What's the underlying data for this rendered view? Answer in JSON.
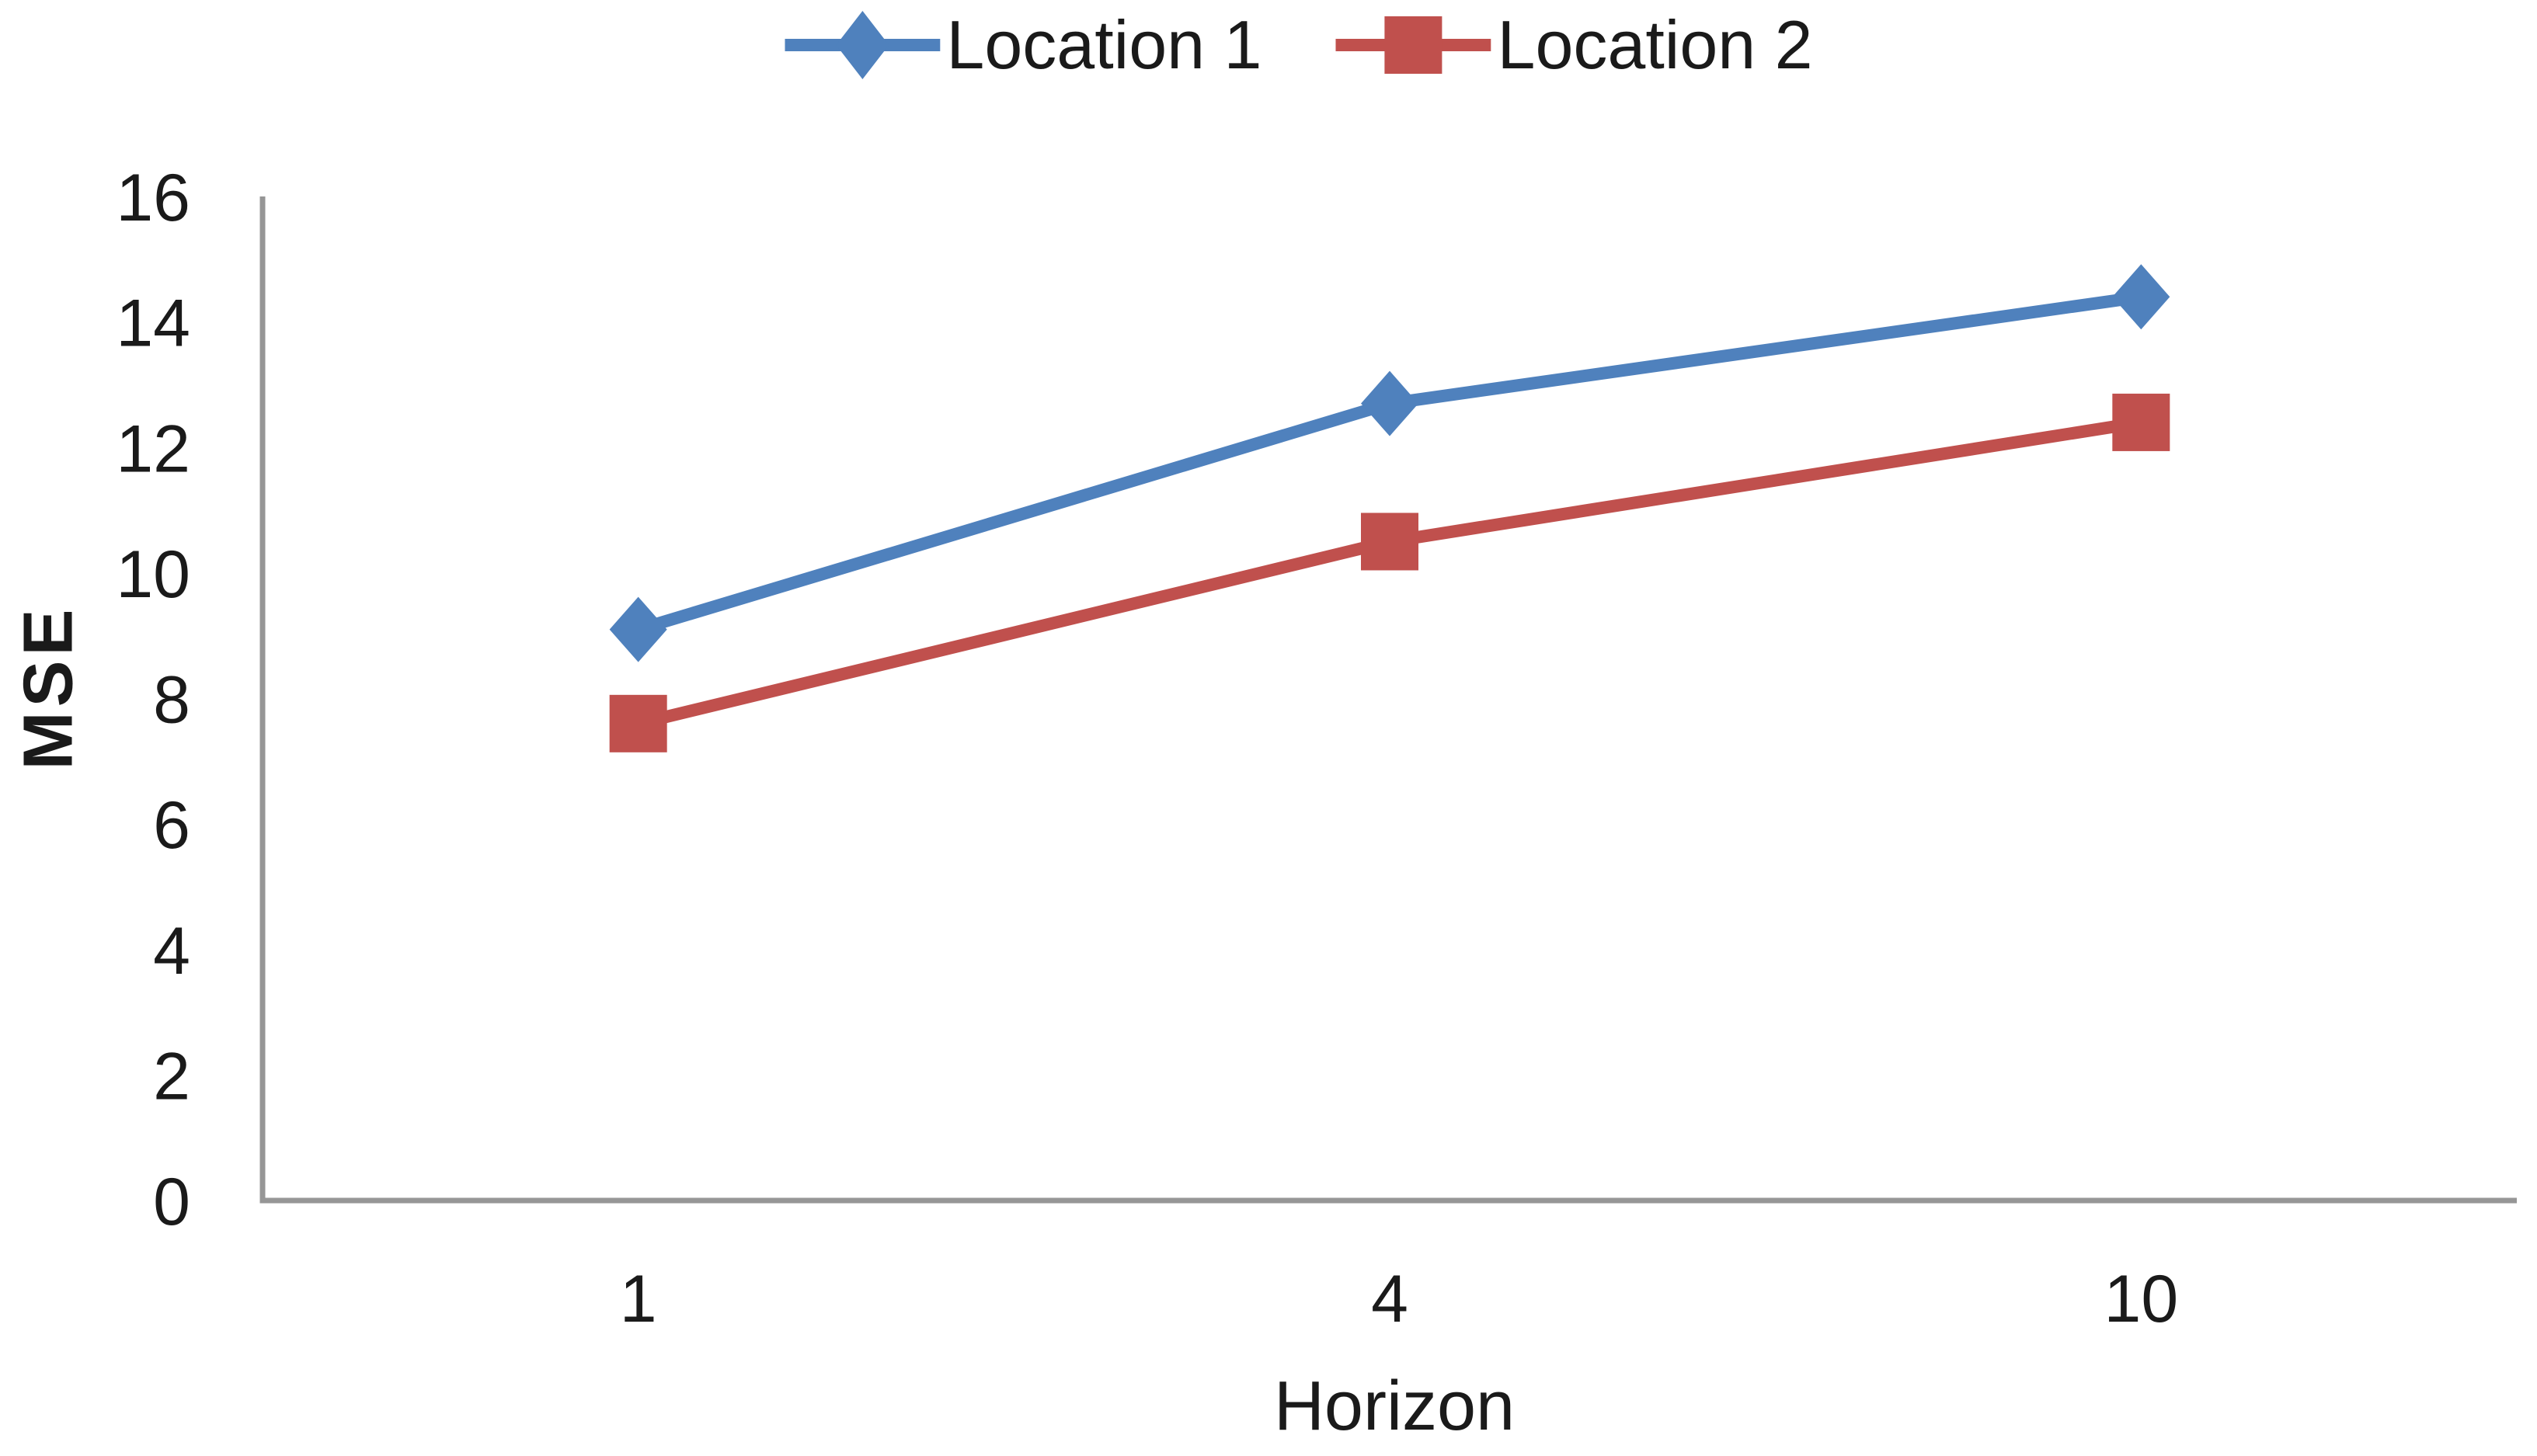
{
  "chart_data": {
    "type": "line",
    "title": "",
    "xlabel": "Horizon",
    "ylabel": "MSE",
    "categories": [
      "1",
      "4",
      "10"
    ],
    "series": [
      {
        "name": "Location 1",
        "color": "#4F81BD",
        "marker": "diamond",
        "values": [
          9.1,
          12.7,
          14.4
        ]
      },
      {
        "name": "Location 2",
        "color": "#C0504D",
        "marker": "square",
        "values": [
          7.6,
          10.5,
          12.4
        ]
      }
    ],
    "ylim": [
      0,
      16
    ],
    "yticks": [
      0,
      2,
      4,
      6,
      8,
      10,
      12,
      14,
      16
    ],
    "grid": false,
    "legend_position": "top",
    "axis_color": "#969696",
    "text_color": "#1a1a1a"
  }
}
